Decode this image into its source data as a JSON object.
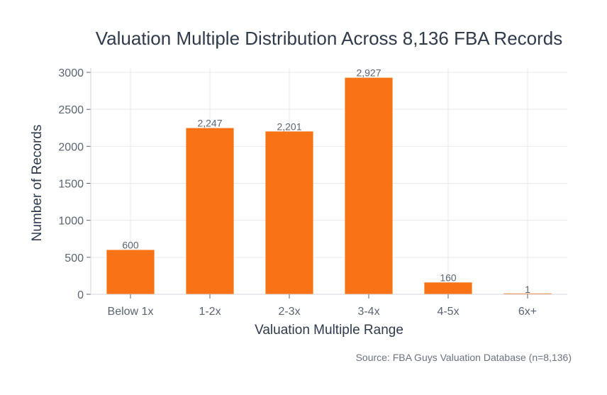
{
  "chart_data": {
    "type": "bar",
    "title": "Valuation Multiple Distribution Across 8,136 FBA Records",
    "xlabel": "Valuation Multiple Range",
    "ylabel": "Number of Records",
    "categories": [
      "Below 1x",
      "1-2x",
      "2-3x",
      "3-4x",
      "4-5x",
      "6x+"
    ],
    "values": [
      600,
      2247,
      2201,
      2927,
      160,
      1
    ],
    "value_labels": [
      "600",
      "2,247",
      "2,201",
      "2,927",
      "160",
      "1"
    ],
    "ylim": [
      0,
      3000
    ],
    "yticks": [
      0,
      500,
      1000,
      1500,
      2000,
      2500,
      3000
    ],
    "grid": true,
    "bar_color": "#f97316",
    "source": "Source: FBA Guys Valuation Database (n=8,136)"
  }
}
